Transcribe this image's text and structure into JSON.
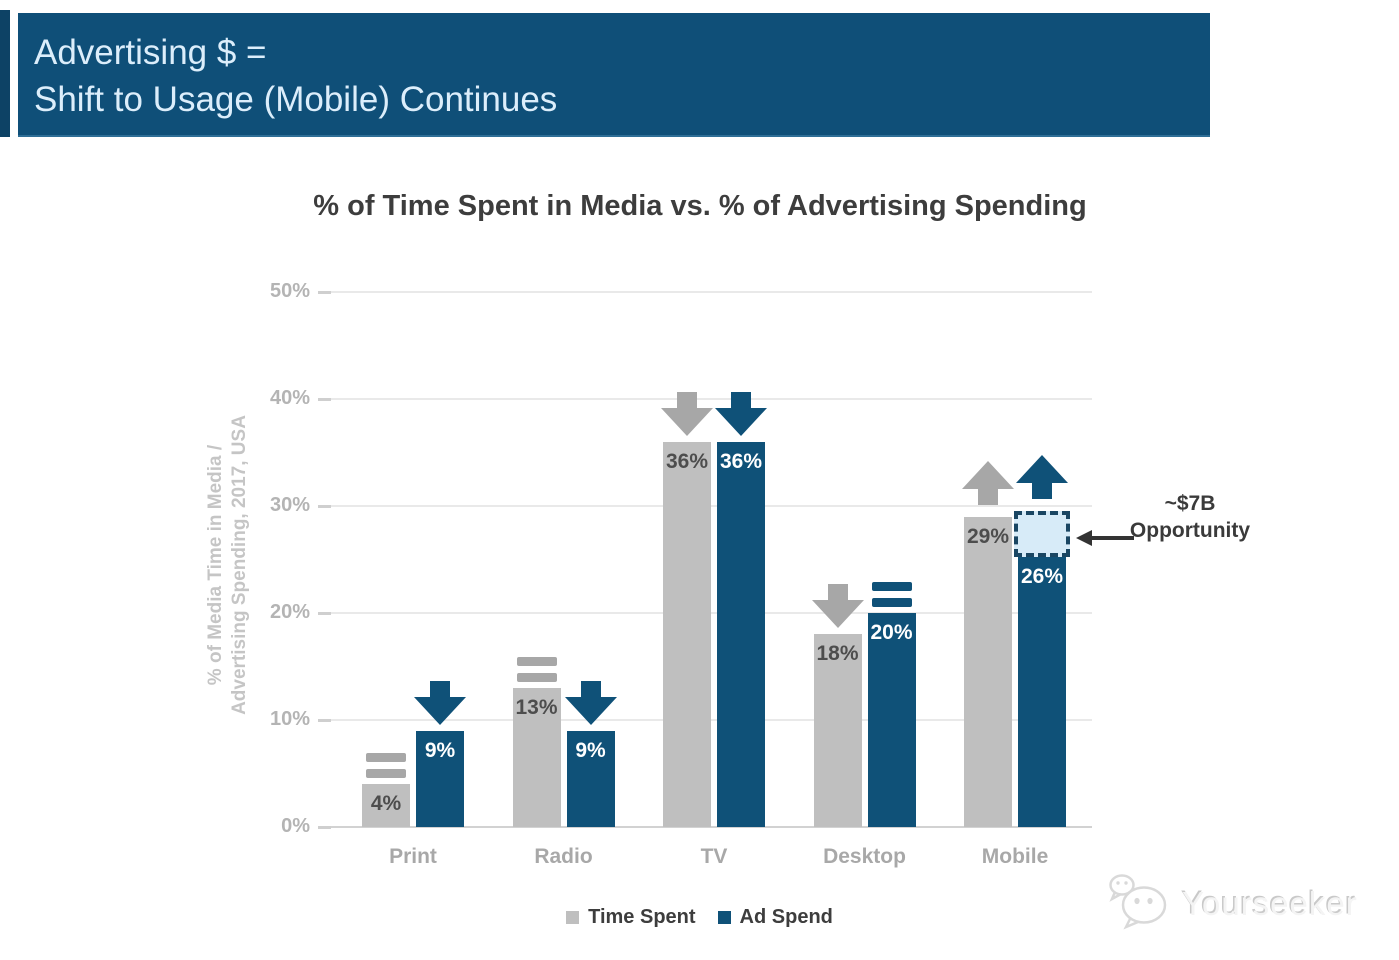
{
  "header": {
    "title_line1": "Advertising $ =",
    "title_line2": "Shift to Usage (Mobile) Continues"
  },
  "chart_data": {
    "type": "bar",
    "title": "% of Time Spent in Media vs. % of Advertising Spending",
    "ylabel_line1": "% of Media Time in Media /",
    "ylabel_line2": "Advertising Spending, 2017, USA",
    "categories": [
      "Print",
      "Radio",
      "TV",
      "Desktop",
      "Mobile"
    ],
    "series": [
      {
        "name": "Time Spent",
        "color": "#bfbfbf",
        "values": [
          4,
          13,
          36,
          18,
          29
        ],
        "trend": [
          "flat",
          "flat",
          "down",
          "down",
          "up"
        ]
      },
      {
        "name": "Ad Spend",
        "color": "#0f5178",
        "values": [
          9,
          9,
          36,
          20,
          26
        ],
        "trend": [
          "down",
          "down",
          "down",
          "flat",
          "up"
        ]
      }
    ],
    "value_label_suffix": "%",
    "ylim": [
      0,
      50
    ],
    "yticks": [
      "0%",
      "10%",
      "20%",
      "30%",
      "40%",
      "50%"
    ],
    "ytick_values": [
      0,
      10,
      20,
      30,
      40,
      50
    ],
    "grid": true,
    "legend_position": "bottom",
    "opportunity_gap": {
      "category_index": 4,
      "series_index": 1,
      "from_percent": 26,
      "to_percent": 29.5,
      "label_line1": "~$7B",
      "label_line2": "Opportunity"
    }
  },
  "legend": [
    {
      "label": "Time Spent",
      "color": "#bfbfbf"
    },
    {
      "label": "Ad Spend",
      "color": "#0f5178"
    }
  ],
  "watermark": {
    "text": "Yourseeker"
  },
  "colors": {
    "banner": "#0f4f78",
    "bar_gray": "#bfbfbf",
    "bar_blue": "#0f5178",
    "arrow_gray": "#a7a7a7",
    "arrow_blue": "#0f5178",
    "label_on_gray": "#4d4d4d",
    "label_on_blue": "#ffffff",
    "tick_label": "#b4b4b4",
    "axis_label": "#c5c5c5",
    "gridline": "#e9e9e9",
    "opportunity_fill": "#d7ebf8",
    "opportunity_border": "#1a4663",
    "annotation_text": "#3a3a3a"
  }
}
